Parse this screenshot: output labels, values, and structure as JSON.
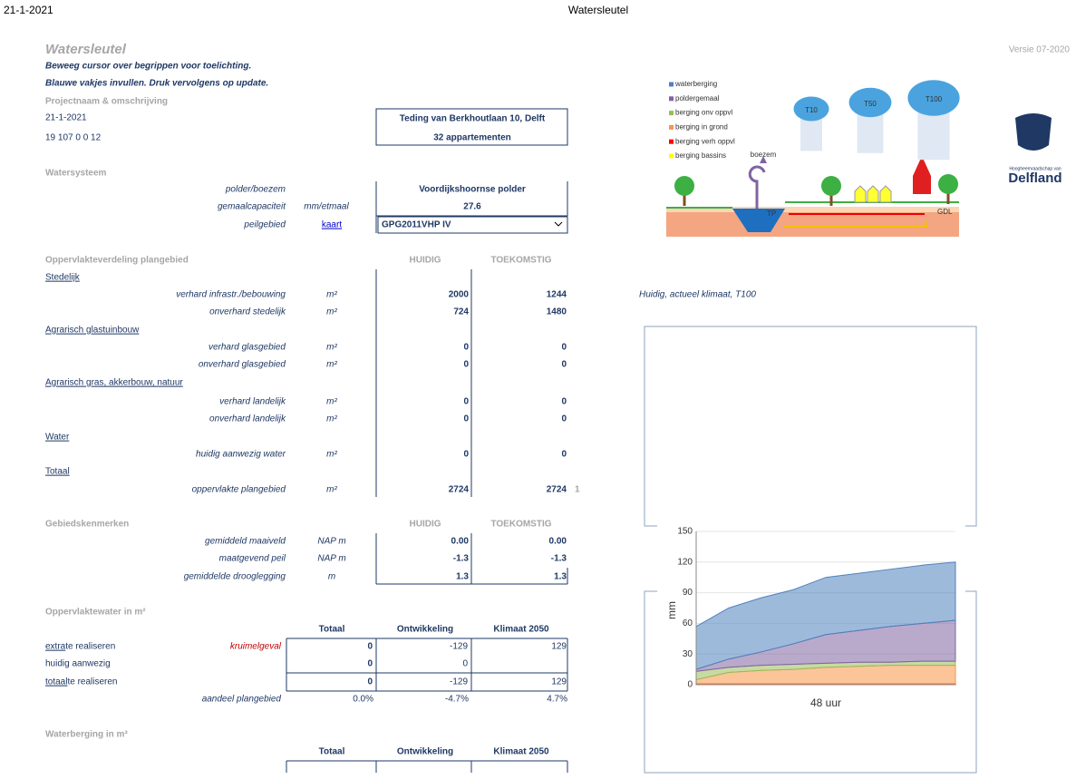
{
  "header": {
    "date": "21-1-2021",
    "title": "Watersleutel"
  },
  "app": {
    "title": "Watersleutel",
    "version": "Versie 07-2020",
    "instructions": [
      "Beweeg cursor over begrippen voor toelichting.",
      "Blauwe vakjes invullen. Druk vervolgens op update."
    ]
  },
  "project": {
    "heading": "Projectnaam & omschrijving",
    "date": "21-1-2021",
    "code": "19 107 0 0 12",
    "address": "Teding van Berkhoutlaan 10, Delft",
    "description": "32 appartementen"
  },
  "watersysteem": {
    "heading": "Watersysteem",
    "rows": [
      {
        "label": "polder/boezem",
        "value": "Voordijkshoornse polder"
      },
      {
        "label": "gemaalcapaciteit",
        "unit": "mm/etmaal",
        "value": "27.6"
      },
      {
        "label": "peilgebied",
        "link": "kaart",
        "value": "GPG2011VHP IV"
      }
    ]
  },
  "oppervlakteverdeling": {
    "heading": "Oppervlakteverdeling plangebied",
    "columns": [
      "HUIDIG",
      "TOEKOMSTIG"
    ],
    "groups": [
      {
        "name": "Stedelijk",
        "rows": [
          {
            "label": "verhard infrastr./bebouwing",
            "unit": "m²",
            "values": [
              "2000",
              "1244"
            ]
          },
          {
            "label": "onverhard stedelijk",
            "unit": "m²",
            "values": [
              "724",
              "1480"
            ]
          }
        ]
      },
      {
        "name": "Agrarisch glastuinbouw",
        "rows": [
          {
            "label": "verhard glasgebied",
            "unit": "m²",
            "values": [
              "0",
              "0"
            ]
          },
          {
            "label": "onverhard glasgebied",
            "unit": "m²",
            "values": [
              "0",
              "0"
            ]
          }
        ]
      },
      {
        "name": "Agrarisch gras, akkerbouw, natuur",
        "rows": [
          {
            "label": "verhard landelijk",
            "unit": "m²",
            "values": [
              "0",
              "0"
            ]
          },
          {
            "label": "onverhard landelijk",
            "unit": "m²",
            "values": [
              "0",
              "0"
            ]
          }
        ]
      },
      {
        "name": "Water",
        "rows": [
          {
            "label": "huidig aanwezig water",
            "unit": "m²",
            "values": [
              "0",
              "0"
            ]
          }
        ]
      },
      {
        "name": "Totaal",
        "rows": [
          {
            "label": "oppervlakte plangebied",
            "unit": "m²",
            "values": [
              "2724",
              "2724"
            ]
          }
        ]
      }
    ],
    "check": "1"
  },
  "gebiedskenmerken": {
    "heading": "Gebiedskenmerken",
    "columns": [
      "HUIDIG",
      "TOEKOMSTIG"
    ],
    "rows": [
      {
        "label": "gemiddeld maaiveld",
        "unit": "NAP m",
        "values": [
          "0.00",
          "0.00"
        ]
      },
      {
        "label": "maatgevend peil",
        "unit": "NAP m",
        "values": [
          "-1.3",
          "-1.3"
        ]
      },
      {
        "label": "gemiddelde drooglegging",
        "unit": "m",
        "values": [
          "1.3",
          "1.3"
        ]
      }
    ]
  },
  "oppervlaktewater": {
    "heading": "Oppervlaktewater in m²",
    "columns": [
      "Totaal",
      "Ontwikkeling",
      "Klimaat 2050"
    ],
    "rows": [
      {
        "underlined": "extra",
        "label": " te realiseren",
        "note": "kruimelgeval",
        "values": [
          "0",
          "-129",
          "129"
        ]
      },
      {
        "label": "huidig aanwezig",
        "values": [
          "0",
          "0"
        ]
      },
      {
        "underlined": "totaal",
        "label": " te realiseren",
        "values": [
          "0",
          "-129",
          "129"
        ]
      },
      {
        "label": "aandeel plangebied",
        "values": [
          "0.0%",
          "-4.7%",
          "4.7%"
        ]
      }
    ]
  },
  "waterberging": {
    "heading": "Waterberging in m³",
    "columns": [
      "Totaal",
      "Ontwikkeling",
      "Klimaat 2050"
    ]
  },
  "scenario": "Huidig, actueel klimaat, T100",
  "diagram": {
    "clouds": [
      "T10",
      "T50",
      "T100"
    ],
    "boezem": "boezem",
    "tp": "TP",
    "gdl": "GDL"
  },
  "logo": {
    "line1": "Hoogheemraadschap van",
    "name": "Delfland"
  },
  "chart": {
    "type": "area",
    "stacked": true,
    "y_label": "mm",
    "x_label": "48 uur",
    "ylim": [
      0,
      150
    ],
    "yticks": [
      0,
      30,
      60,
      90,
      120,
      150
    ],
    "grid": true,
    "series": [
      {
        "name": "waterberging",
        "color": "#4f81bd",
        "values": [
          42,
          50,
          53,
          53,
          56,
          56,
          56,
          57,
          57
        ]
      },
      {
        "name": "poldergemaal",
        "color": "#8064a2",
        "values": [
          2,
          8,
          13,
          20,
          28,
          31,
          35,
          37,
          40
        ]
      },
      {
        "name": "berging onv oppvl",
        "color": "#9bbb59",
        "values": [
          8,
          5,
          5,
          5,
          4,
          4,
          3,
          4,
          4
        ]
      },
      {
        "name": "berging in grond",
        "color": "#f79646",
        "values": [
          4,
          11,
          13,
          14,
          16,
          17,
          18,
          18,
          18
        ]
      },
      {
        "name": "berging verh oppvl",
        "color": "#ff0000",
        "values": [
          1,
          1,
          1,
          1,
          1,
          1,
          1,
          1,
          1
        ]
      },
      {
        "name": "berging bassins",
        "color": "#ffff00",
        "values": [
          0,
          0,
          0,
          0,
          0,
          0,
          0,
          0,
          0
        ]
      }
    ]
  }
}
